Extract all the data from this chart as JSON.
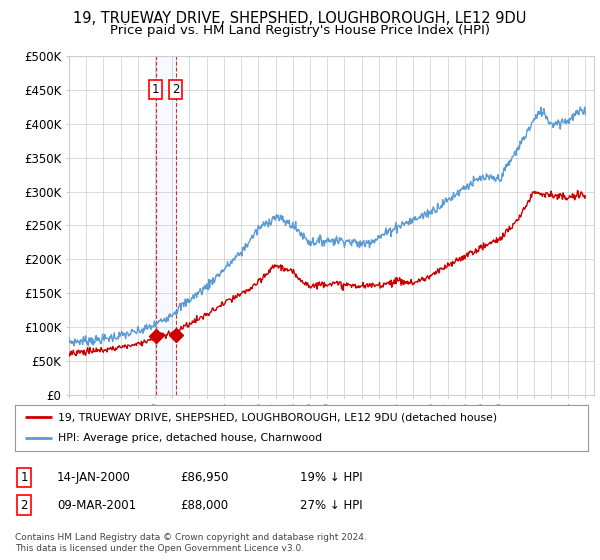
{
  "title": "19, TRUEWAY DRIVE, SHEPSHED, LOUGHBOROUGH, LE12 9DU",
  "subtitle": "Price paid vs. HM Land Registry's House Price Index (HPI)",
  "ylim": [
    0,
    500000
  ],
  "yticks": [
    0,
    50000,
    100000,
    150000,
    200000,
    250000,
    300000,
    350000,
    400000,
    450000,
    500000
  ],
  "ytick_labels": [
    "£0",
    "£50K",
    "£100K",
    "£150K",
    "£200K",
    "£250K",
    "£300K",
    "£350K",
    "£400K",
    "£450K",
    "£500K"
  ],
  "x_start_year": 1995,
  "x_end_year": 2025,
  "hpi_color": "#5b9bd5",
  "price_color": "#cc0000",
  "sale1_date": 2000.04,
  "sale1_price": 86950,
  "sale2_date": 2001.19,
  "sale2_price": 88000,
  "legend_house_label": "19, TRUEWAY DRIVE, SHEPSHED, LOUGHBOROUGH, LE12 9DU (detached house)",
  "legend_hpi_label": "HPI: Average price, detached house, Charnwood",
  "table_row1": [
    "1",
    "14-JAN-2000",
    "£86,950",
    "19% ↓ HPI"
  ],
  "table_row2": [
    "2",
    "09-MAR-2001",
    "£88,000",
    "27% ↓ HPI"
  ],
  "footnote": "Contains HM Land Registry data © Crown copyright and database right 2024.\nThis data is licensed under the Open Government Licence v3.0.",
  "bg_color": "#ffffff",
  "grid_color": "#cccccc",
  "title_fontsize": 10.5,
  "subtitle_fontsize": 9.5,
  "axis_fontsize": 8.5
}
